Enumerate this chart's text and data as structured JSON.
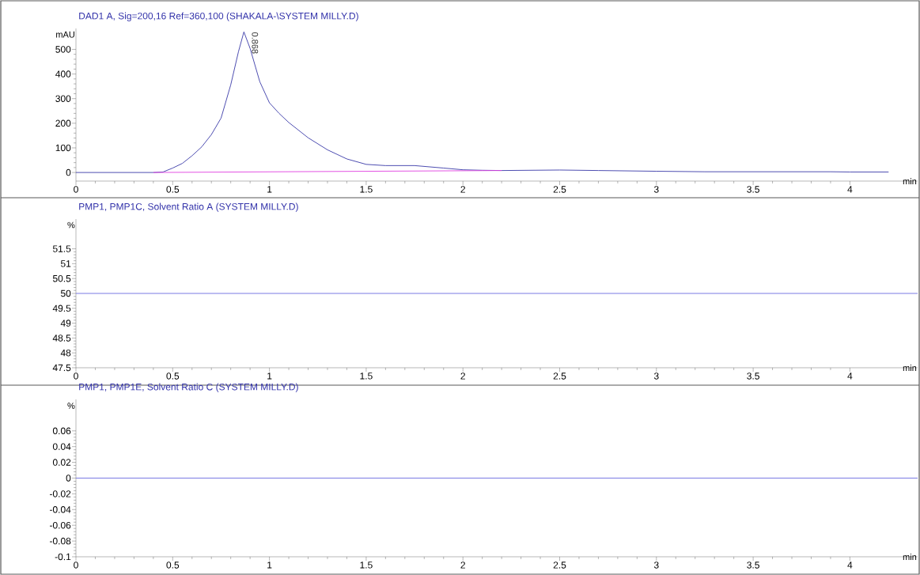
{
  "chart_data": [
    {
      "type": "line",
      "title": "DAD1 A, Sig=200,16 Ref=360,100 (SHAKALA-\\SYSTEM  MILLY.D)",
      "ylabel": "mAU",
      "xlabel": "min",
      "marker": "none",
      "series": [
        {
          "color": "#3a3aa8",
          "x": [
            0,
            0.2,
            0.4,
            0.45,
            0.5,
            0.55,
            0.6,
            0.65,
            0.7,
            0.75,
            0.8,
            0.84,
            0.868,
            0.9,
            0.95,
            1.0,
            1.05,
            1.1,
            1.2,
            1.3,
            1.4,
            1.5,
            1.6,
            1.75,
            1.9,
            2.0,
            2.1,
            2.2,
            2.5,
            2.7,
            3.0,
            3.25,
            3.5,
            3.9,
            4.0,
            4.2
          ],
          "values": [
            0,
            0,
            0,
            2,
            18,
            37,
            68,
            104,
            154,
            221,
            356,
            491,
            571,
            504,
            369,
            283,
            240,
            203,
            141,
            92,
            55,
            33,
            28,
            28,
            18,
            11,
            9,
            8,
            10,
            8,
            5,
            3,
            3,
            3,
            2,
            2
          ]
        },
        {
          "color": "#e040e0",
          "x": [
            0.4,
            2.2
          ],
          "values": [
            0,
            8
          ]
        }
      ],
      "annotations": [
        {
          "text": "0.868",
          "x": 0.868,
          "y": 571
        }
      ],
      "xlim": [
        0,
        4.35
      ],
      "ylim": [
        -35,
        585
      ],
      "xticks": [
        0,
        0.5,
        1,
        1.5,
        2,
        2.5,
        3,
        3.5,
        4
      ],
      "yticks": [
        0,
        100,
        200,
        300,
        400,
        500
      ]
    },
    {
      "type": "line",
      "title": "PMP1, PMP1C, Solvent Ratio A     (SYSTEM  MILLY.D)",
      "ylabel": "%",
      "xlabel": "min",
      "marker": "none",
      "series": [
        {
          "color": "#6b6be0",
          "x": [
            0,
            4.35
          ],
          "values": [
            50,
            50
          ]
        }
      ],
      "xlim": [
        0,
        4.35
      ],
      "ylim": [
        47.5,
        52.5
      ],
      "xticks": [
        0,
        0.5,
        1,
        1.5,
        2,
        2.5,
        3,
        3.5,
        4
      ],
      "yticks": [
        47.5,
        48,
        48.5,
        49,
        49.5,
        50,
        50.5,
        51,
        51.5
      ]
    },
    {
      "type": "line",
      "title": "PMP1, PMP1E, Solvent Ratio C     (SYSTEM  MILLY.D)",
      "ylabel": "%",
      "xlabel": "min",
      "marker": "none",
      "series": [
        {
          "color": "#6b6be0",
          "x": [
            0,
            4.35
          ],
          "values": [
            0,
            0
          ]
        }
      ],
      "xlim": [
        0,
        4.35
      ],
      "ylim": [
        -0.1,
        0.1
      ],
      "xticks": [
        0,
        0.5,
        1,
        1.5,
        2,
        2.5,
        3,
        3.5,
        4
      ],
      "yticks": [
        -0.1,
        -0.08,
        -0.06,
        -0.04,
        -0.02,
        0,
        0.02,
        0.04,
        0.06
      ]
    }
  ]
}
